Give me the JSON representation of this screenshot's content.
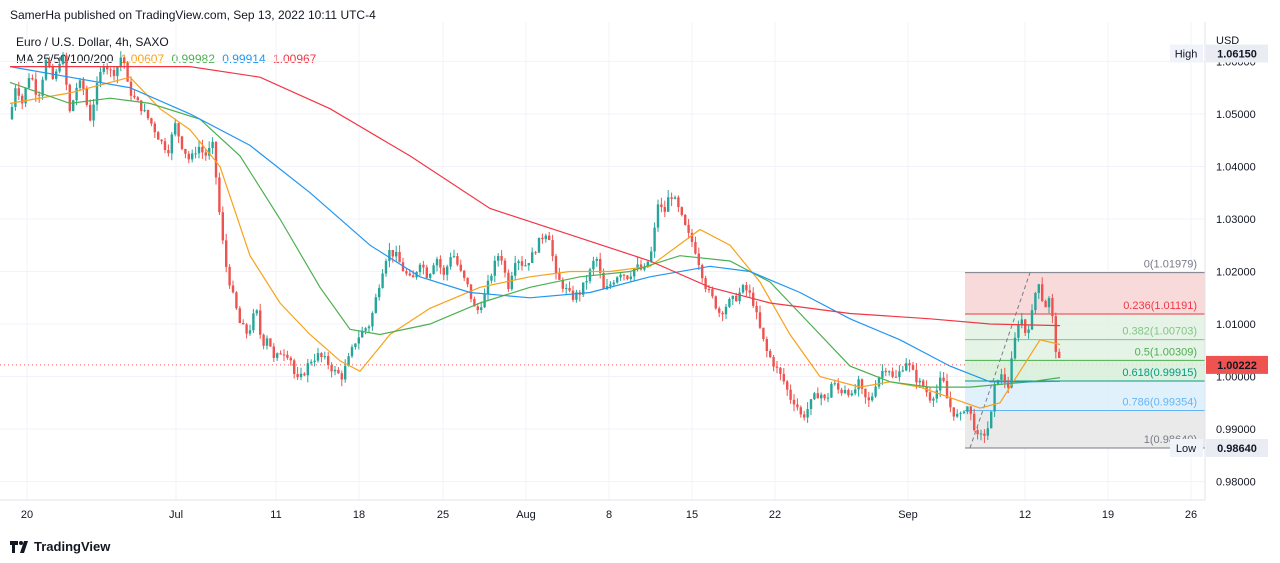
{
  "header": {
    "published": "SamerHa published on TradingView.com, Sep 13, 2022 10:11 UTC-4",
    "symbol": "Euro / U.S. Dollar, 4h, SAXO",
    "ma_label": "MA 25/50/100/200",
    "ma_values": [
      "1.00607",
      "0.99982",
      "0.99914",
      "1.00967"
    ]
  },
  "footer": {
    "brand": "TradingView"
  },
  "colors": {
    "up": "#26a69a",
    "down": "#ef5350",
    "ma25": "#f7a21b",
    "ma50": "#4caf50",
    "ma100": "#2196f3",
    "ma200": "#f23645"
  },
  "chart_data": {
    "type": "line",
    "title": "Euro / U.S. Dollar, 4h, SAXO",
    "currency": "USD",
    "ylim": [
      0.9765,
      1.0675
    ],
    "y_ticks": [
      "1.06000",
      "1.05000",
      "1.04000",
      "1.03000",
      "1.02000",
      "1.01000",
      "1.00000",
      "0.99000",
      "0.98000"
    ],
    "x_ticks": [
      "20",
      "Jul",
      "11",
      "18",
      "25",
      "Aug",
      "8",
      "15",
      "22",
      "Sep",
      "12",
      "19",
      "26"
    ],
    "last_price": "1.00222",
    "high_label": "High",
    "high": "1.06150",
    "low_label": "Low",
    "low": "0.98640",
    "close_path_note": "approximate close path",
    "close_path": [
      [
        0,
        1.049
      ],
      [
        6,
        1.056
      ],
      [
        12,
        1.052
      ],
      [
        20,
        1.058
      ],
      [
        28,
        1.053
      ],
      [
        36,
        1.06
      ],
      [
        44,
        1.056
      ],
      [
        52,
        1.062
      ],
      [
        60,
        1.05
      ],
      [
        66,
        1.055
      ],
      [
        72,
        1.056
      ],
      [
        80,
        1.049
      ],
      [
        88,
        1.056
      ],
      [
        94,
        1.06
      ],
      [
        100,
        1.058
      ],
      [
        106,
        1.058
      ],
      [
        110,
        1.061
      ],
      [
        114,
        1.06
      ],
      [
        118,
        1.055
      ],
      [
        124,
        1.053
      ],
      [
        132,
        1.051
      ],
      [
        142,
        1.048
      ],
      [
        150,
        1.045
      ],
      [
        158,
        1.043
      ],
      [
        165,
        1.048
      ],
      [
        172,
        1.044
      ],
      [
        180,
        1.041
      ],
      [
        188,
        1.044
      ],
      [
        195,
        1.042
      ],
      [
        203,
        1.044
      ],
      [
        210,
        1.03
      ],
      [
        215,
        1.022
      ],
      [
        222,
        1.016
      ],
      [
        230,
        1.01
      ],
      [
        238,
        1.008
      ],
      [
        246,
        1.013
      ],
      [
        252,
        1.006
      ],
      [
        258,
        1.008
      ],
      [
        264,
        1.003
      ],
      [
        272,
        1.005
      ],
      [
        280,
        1.004
      ],
      [
        286,
        0.999
      ],
      [
        292,
        1.0
      ],
      [
        300,
        1.003
      ],
      [
        308,
        1.004
      ],
      [
        316,
        1.003
      ],
      [
        324,
        1.001
      ],
      [
        332,
        1.0
      ],
      [
        338,
        1.003
      ],
      [
        346,
        1.007
      ],
      [
        354,
        1.009
      ],
      [
        360,
        1.01
      ],
      [
        366,
        1.015
      ],
      [
        372,
        1.02
      ],
      [
        378,
        1.024
      ],
      [
        386,
        1.023
      ],
      [
        394,
        1.02
      ],
      [
        402,
        1.018
      ],
      [
        410,
        1.022
      ],
      [
        418,
        1.019
      ],
      [
        426,
        1.023
      ],
      [
        434,
        1.019
      ],
      [
        442,
        1.024
      ],
      [
        450,
        1.02
      ],
      [
        458,
        1.017
      ],
      [
        466,
        1.012
      ],
      [
        474,
        1.015
      ],
      [
        482,
        1.02
      ],
      [
        490,
        1.024
      ],
      [
        498,
        1.017
      ],
      [
        506,
        1.023
      ],
      [
        514,
        1.021
      ],
      [
        522,
        1.023
      ],
      [
        530,
        1.026
      ],
      [
        538,
        1.028
      ],
      [
        546,
        1.019
      ],
      [
        554,
        1.017
      ],
      [
        562,
        1.015
      ],
      [
        570,
        1.016
      ],
      [
        578,
        1.019
      ],
      [
        586,
        1.023
      ],
      [
        594,
        1.016
      ],
      [
        602,
        1.018
      ],
      [
        610,
        1.02
      ],
      [
        618,
        1.019
      ],
      [
        626,
        1.021
      ],
      [
        634,
        1.02
      ],
      [
        642,
        1.024
      ],
      [
        648,
        1.033
      ],
      [
        654,
        1.031
      ],
      [
        660,
        1.035
      ],
      [
        666,
        1.033
      ],
      [
        672,
        1.03
      ],
      [
        678,
        1.027
      ],
      [
        684,
        1.025
      ],
      [
        690,
        1.021
      ],
      [
        696,
        1.017
      ],
      [
        702,
        1.015
      ],
      [
        710,
        1.012
      ],
      [
        718,
        1.014
      ],
      [
        726,
        1.015
      ],
      [
        734,
        1.017
      ],
      [
        742,
        1.015
      ],
      [
        750,
        1.009
      ],
      [
        756,
        1.005
      ],
      [
        762,
        1.003
      ],
      [
        768,
        1.001
      ],
      [
        774,
        0.999
      ],
      [
        780,
        0.996
      ],
      [
        786,
        0.995
      ],
      [
        792,
        0.992
      ],
      [
        798,
        0.994
      ],
      [
        804,
        0.996
      ],
      [
        810,
        0.997
      ],
      [
        816,
        0.995
      ],
      [
        822,
        0.999
      ],
      [
        830,
        0.997
      ],
      [
        836,
        0.998
      ],
      [
        842,
        0.996
      ],
      [
        848,
        0.999
      ],
      [
        854,
        0.996
      ],
      [
        860,
        0.995
      ],
      [
        866,
        0.999
      ],
      [
        872,
        1.001
      ],
      [
        878,
        1.002
      ],
      [
        884,
        0.999
      ],
      [
        890,
        1.001
      ],
      [
        896,
        1.003
      ],
      [
        902,
        1.001
      ],
      [
        908,
        0.999
      ],
      [
        914,
        0.998
      ],
      [
        920,
        0.996
      ],
      [
        926,
        0.997
      ],
      [
        932,
        1.0
      ],
      [
        938,
        0.995
      ],
      [
        944,
        0.993
      ],
      [
        950,
        0.992
      ],
      [
        956,
        0.995
      ],
      [
        962,
        0.992
      ],
      [
        968,
        0.988
      ],
      [
        974,
        0.989
      ],
      [
        980,
        0.991
      ],
      [
        986,
        1.0
      ],
      [
        992,
        1.0
      ],
      [
        998,
        0.998
      ],
      [
        1004,
        1.006
      ],
      [
        1010,
        1.012
      ],
      [
        1016,
        1.008
      ],
      [
        1022,
        1.012
      ],
      [
        1028,
        1.019
      ],
      [
        1034,
        1.013
      ],
      [
        1040,
        1.015
      ],
      [
        1046,
        1.005
      ],
      [
        1050,
        1.0022
      ]
    ],
    "series": [
      {
        "name": "MA 25",
        "value": "1.00607",
        "anchors": [
          [
            0,
            1.052
          ],
          [
            60,
            1.054
          ],
          [
            120,
            1.057
          ],
          [
            150,
            1.051
          ],
          [
            180,
            1.047
          ],
          [
            210,
            1.04
          ],
          [
            240,
            1.023
          ],
          [
            270,
            1.014
          ],
          [
            300,
            1.008
          ],
          [
            330,
            1.003
          ],
          [
            350,
            1.001
          ],
          [
            380,
            1.008
          ],
          [
            420,
            1.013
          ],
          [
            470,
            1.017
          ],
          [
            520,
            1.019
          ],
          [
            560,
            1.02
          ],
          [
            600,
            1.02
          ],
          [
            640,
            1.021
          ],
          [
            690,
            1.028
          ],
          [
            720,
            1.025
          ],
          [
            750,
            1.018
          ],
          [
            780,
            1.008
          ],
          [
            810,
            1.0
          ],
          [
            850,
            0.998
          ],
          [
            880,
            0.999
          ],
          [
            910,
            0.998
          ],
          [
            940,
            0.996
          ],
          [
            970,
            0.994
          ],
          [
            990,
            0.995
          ],
          [
            1010,
            1.001
          ],
          [
            1030,
            1.007
          ],
          [
            1050,
            1.0061
          ]
        ]
      },
      {
        "name": "MA 50",
        "value": "0.99982",
        "anchors": [
          [
            0,
            1.056
          ],
          [
            60,
            1.052
          ],
          [
            100,
            1.053
          ],
          [
            140,
            1.052
          ],
          [
            190,
            1.049
          ],
          [
            230,
            1.042
          ],
          [
            270,
            1.03
          ],
          [
            310,
            1.017
          ],
          [
            340,
            1.009
          ],
          [
            370,
            1.008
          ],
          [
            420,
            1.01
          ],
          [
            470,
            1.014
          ],
          [
            520,
            1.017
          ],
          [
            570,
            1.019
          ],
          [
            620,
            1.02
          ],
          [
            670,
            1.023
          ],
          [
            720,
            1.022
          ],
          [
            760,
            1.018
          ],
          [
            800,
            1.01
          ],
          [
            840,
            1.002
          ],
          [
            880,
            0.999
          ],
          [
            920,
            0.998
          ],
          [
            960,
            0.998
          ],
          [
            990,
            0.9985
          ],
          [
            1020,
            0.999
          ],
          [
            1050,
            0.9998
          ]
        ]
      },
      {
        "name": "MA 100",
        "value": "0.99914",
        "anchors": [
          [
            0,
            1.059
          ],
          [
            60,
            1.057
          ],
          [
            120,
            1.055
          ],
          [
            180,
            1.05
          ],
          [
            240,
            1.044
          ],
          [
            300,
            1.035
          ],
          [
            360,
            1.025
          ],
          [
            410,
            1.019
          ],
          [
            460,
            1.016
          ],
          [
            520,
            1.015
          ],
          [
            580,
            1.016
          ],
          [
            640,
            1.019
          ],
          [
            700,
            1.021
          ],
          [
            740,
            1.02
          ],
          [
            790,
            1.016
          ],
          [
            840,
            1.011
          ],
          [
            890,
            1.007
          ],
          [
            940,
            1.002
          ],
          [
            980,
            0.999
          ],
          [
            1020,
            0.999
          ],
          [
            1050,
            0.9991
          ]
        ]
      },
      {
        "name": "MA 200",
        "value": "1.00967",
        "anchors": [
          [
            0,
            1.059
          ],
          [
            100,
            1.059
          ],
          [
            180,
            1.059
          ],
          [
            250,
            1.057
          ],
          [
            320,
            1.051
          ],
          [
            400,
            1.042
          ],
          [
            480,
            1.032
          ],
          [
            560,
            1.027
          ],
          [
            640,
            1.022
          ],
          [
            700,
            1.017
          ],
          [
            760,
            1.014
          ],
          [
            840,
            1.012
          ],
          [
            920,
            1.011
          ],
          [
            980,
            1.01
          ],
          [
            1050,
            1.0097
          ]
        ]
      }
    ],
    "fib_levels": [
      {
        "label": "0(1.01979)",
        "value": 1.01979,
        "color": "#787b86"
      },
      {
        "label": "0.236(1.01191)",
        "value": 1.01191,
        "color": "#f23645"
      },
      {
        "label": "0.382(1.00703)",
        "value": 1.00703,
        "color": "#81c784"
      },
      {
        "label": "0.5(1.00309)",
        "value": 1.00309,
        "color": "#4caf50"
      },
      {
        "label": "0.618(0.99915)",
        "value": 0.99915,
        "color": "#089981"
      },
      {
        "label": "0.786(0.99354)",
        "value": 0.99354,
        "color": "#64b5f6"
      },
      {
        "label": "1(0.98640)",
        "value": 0.9864,
        "color": "#787b86"
      }
    ],
    "fib_fills": [
      "#f8d3d5",
      "#e2f1e3",
      "#e2f1e3",
      "#d6eed8",
      "#dbeefb",
      "#e6e6e8"
    ]
  }
}
